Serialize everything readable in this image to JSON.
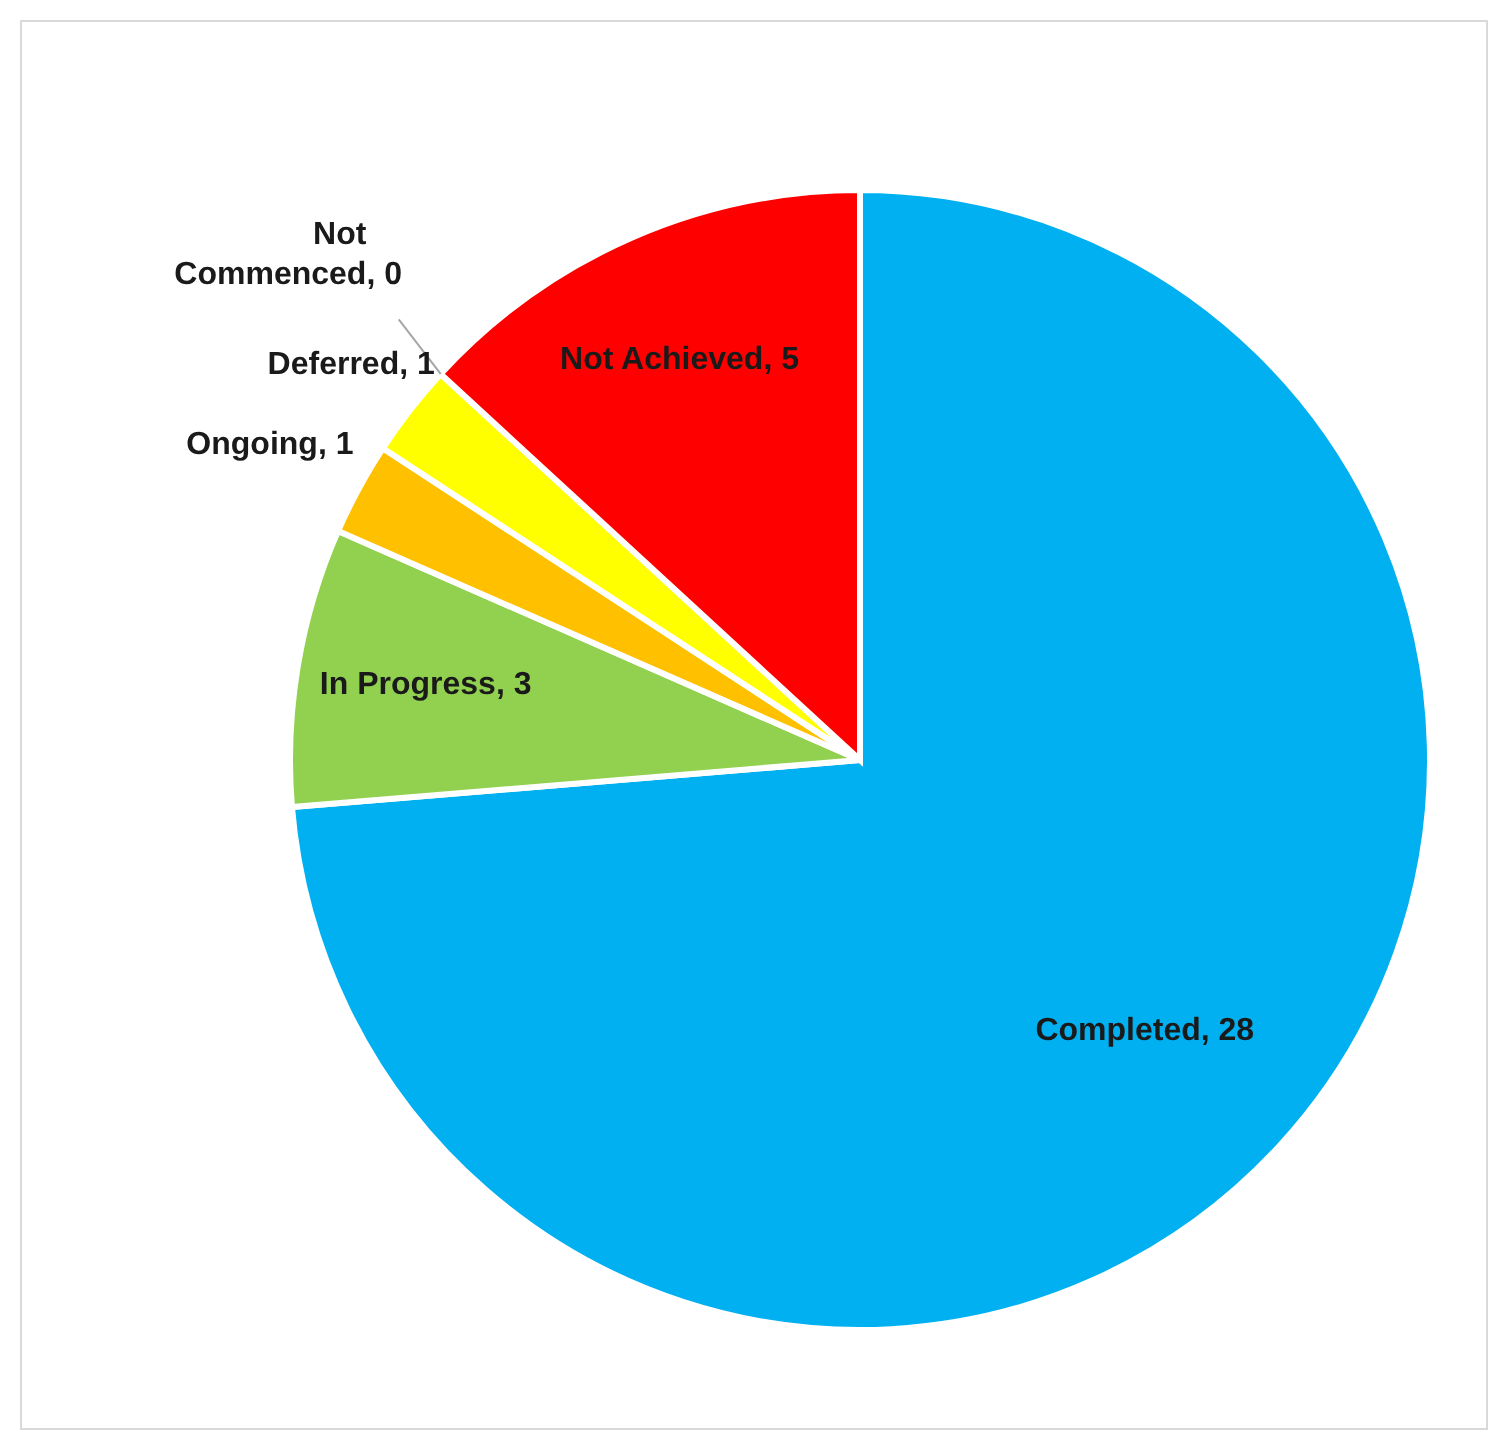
{
  "chart_data": {
    "type": "pie",
    "categories": [
      "Completed",
      "In Progress",
      "Ongoing",
      "Deferred",
      "Not Commenced",
      "Not Achieved"
    ],
    "values": [
      28,
      3,
      1,
      1,
      0,
      5
    ],
    "colors": [
      "#00b0f0",
      "#92d050",
      "#ffc000",
      "#ffff00",
      "#a5a5a5",
      "#ff0000"
    ],
    "value_labels": [
      ", 28",
      ", 3",
      ", 1",
      ", 1",
      ", 0",
      ", 5"
    ]
  }
}
